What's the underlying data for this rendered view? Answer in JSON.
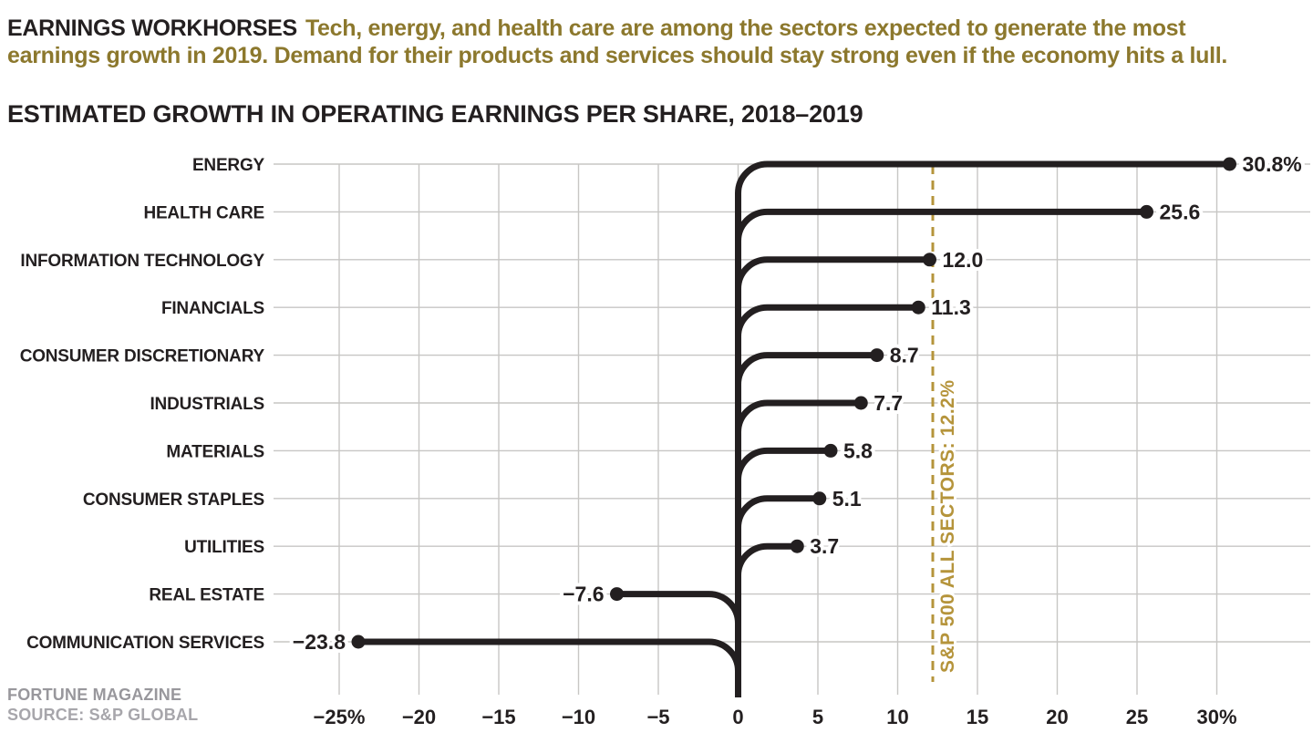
{
  "header": {
    "line1_bold": "EARNINGS WORKHORSES",
    "line1_rest": "Tech, energy, and health care are among the sectors expected to generate the most",
    "line2": "earnings growth in 2019. Demand for their products and services should stay strong even if the economy hits a lull."
  },
  "subtitle": "ESTIMATED GROWTH IN OPERATING EARNINGS PER SHARE, 2018–2019",
  "footer": {
    "line1": "FORTUNE MAGAZINE",
    "line2": "SOURCE: S&P GLOBAL"
  },
  "colors": {
    "ink": "#231f20",
    "olive": "#8c782d",
    "gold": "#b5943b",
    "grid": "#c7c6c4",
    "footer_primary": "#98979c",
    "footer_secondary": "#a7a6ab",
    "background": "#ffffff"
  },
  "chart_data": {
    "type": "bar",
    "orientation": "horizontal",
    "title": "ESTIMATED GROWTH IN OPERATING EARNINGS PER SHARE, 2018–2019",
    "unit": "%",
    "categories": [
      "ENERGY",
      "HEALTH CARE",
      "INFORMATION TECHNOLOGY",
      "FINANCIALS",
      "CONSUMER DISCRETIONARY",
      "INDUSTRIALS",
      "MATERIALS",
      "CONSUMER STAPLES",
      "UTILITIES",
      "REAL ESTATE",
      "COMMUNICATION SERVICES"
    ],
    "values": [
      30.8,
      25.6,
      12.0,
      11.3,
      8.7,
      7.7,
      5.8,
      5.1,
      3.7,
      -7.6,
      -23.8
    ],
    "value_labels": [
      "30.8%",
      "25.6",
      "12.0",
      "11.3",
      "8.7",
      "7.7",
      "5.8",
      "5.1",
      "3.7",
      "−7.6",
      "−23.8"
    ],
    "reference_line": {
      "value": 12.2,
      "label": "S&P 500 ALL SECTORS: 12.2%"
    },
    "x_ticks": [
      -25,
      -20,
      -15,
      -10,
      -5,
      0,
      5,
      10,
      15,
      20,
      25,
      30
    ],
    "x_tick_labels": [
      "−25%",
      "−20",
      "−15",
      "−10",
      "−5",
      "0",
      "5",
      "10",
      "15",
      "20",
      "25",
      "30%"
    ],
    "xlim": [
      -25.5,
      31
    ],
    "grid": true,
    "legend": false
  }
}
